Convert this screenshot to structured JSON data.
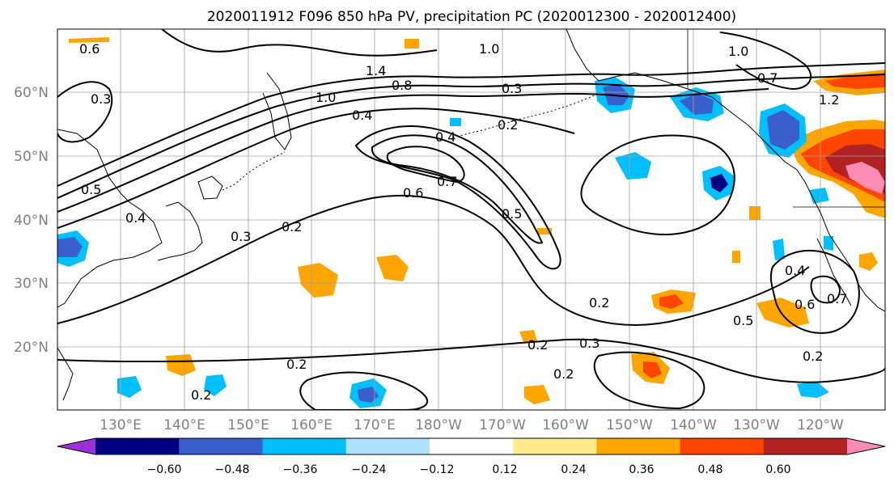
{
  "title": "2020011912 F096 850 hPa PV, precipitation PC (2020012300 - 2020012400)",
  "lat_labels": [
    "60°N",
    "50°N",
    "40°N",
    "30°N",
    "20°N"
  ],
  "lon_labels": [
    "130°E",
    "140°E",
    "150°E",
    "160°E",
    "170°E",
    "180°W",
    "170°W",
    "160°W",
    "150°W",
    "140°W",
    "130°W",
    "120°W"
  ],
  "colorbar": {
    "ticks": [
      "−0.60",
      "−0.48",
      "−0.36",
      "−0.24",
      "−0.12",
      "0.12",
      "0.24",
      "0.36",
      "0.48",
      "0.60"
    ],
    "colors": [
      "#9b30d8",
      "#000080",
      "#3a5fcd",
      "#00bfff",
      "#b0e2ff",
      "#ffffff",
      "#ffec8b",
      "#ffa500",
      "#ff4500",
      "#b22222",
      "#ff8cb4"
    ]
  },
  "contour_labels": [
    "0.6",
    "1.0",
    "1.4",
    "0.8",
    "1.0",
    "0.4",
    "0.3",
    "0.2",
    "1.0",
    "0.7",
    "1.2",
    "0.3",
    "0.5",
    "0.4",
    "0.3",
    "0.2",
    "0.4",
    "0.7",
    "0.6",
    "0.5",
    "0.2",
    "0.5",
    "0.6",
    "0.4",
    "0.7",
    "0.2",
    "0.2",
    "0.3",
    "0.2",
    "0.2",
    "0.2"
  ]
}
